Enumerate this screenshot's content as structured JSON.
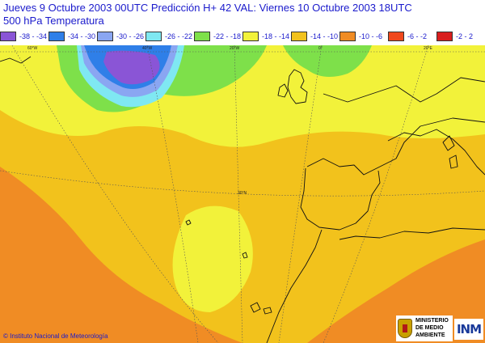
{
  "header": {
    "line1": "Jueves 9 Octubre 2003 00UTC    Predicción H+ 42  VAL: Viernes 10 Octubre 2003 18UTC",
    "line2": "500  hPa Temperatura"
  },
  "legend": [
    {
      "label": "-38 - -34",
      "color": "#8a55d6"
    },
    {
      "label": "-34 - -30",
      "color": "#2f7fe8"
    },
    {
      "label": "-30 - -26",
      "color": "#8aa6f2"
    },
    {
      "label": "-26 - -22",
      "color": "#7fe8f2"
    },
    {
      "label": "-22 - -18",
      "color": "#7ee04a"
    },
    {
      "label": "-18 - -14",
      "color": "#f2f23a"
    },
    {
      "label": "-14 - -10",
      "color": "#f2c21c"
    },
    {
      "label": "-10 - -6",
      "color": "#f08c24"
    },
    {
      "label": "-6 - -2",
      "color": "#f0481c"
    },
    {
      "label": "-2 - 2",
      "color": "#d81e1e"
    }
  ],
  "map": {
    "lon_labels": [
      "60°W",
      "40°W",
      "20°W",
      "0°",
      "20°E"
    ],
    "lat_label": "30°N"
  },
  "footer": {
    "credit": "© Instituto Nacional de Meteorología",
    "ministry": [
      "MINISTERIO",
      "DE MEDIO",
      "AMBIENTE"
    ],
    "inm_logo": "INM"
  }
}
